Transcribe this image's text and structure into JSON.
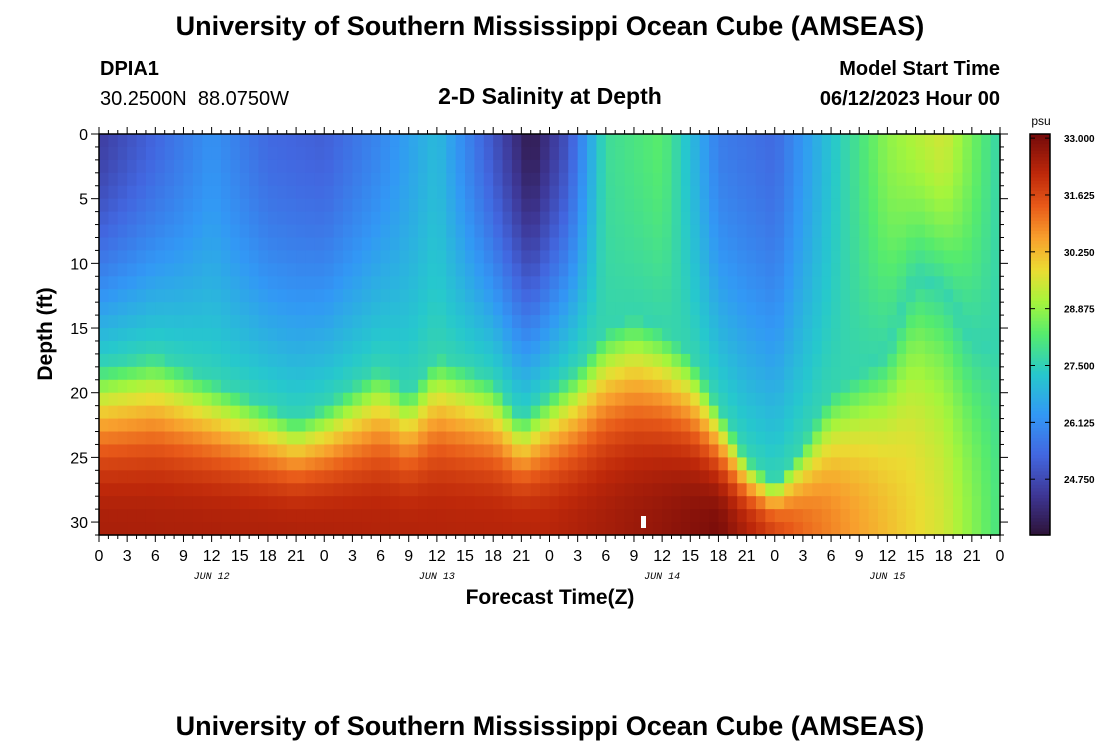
{
  "header": {
    "title": "University of Southern Mississippi Ocean Cube (AMSEAS)",
    "station_id": "DPIA1",
    "coords": "30.2500N  88.0750W",
    "subtitle": "2-D Salinity at Depth",
    "model_label": "Model Start Time",
    "model_time": "06/12/2023 Hour 00"
  },
  "footer": {
    "title": "University of Southern Mississippi Ocean Cube (AMSEAS)"
  },
  "chart_data": {
    "type": "heatmap",
    "title": "2-D Salinity at Depth",
    "xlabel": "Forecast Time(Z)",
    "ylabel": "Depth (ft)",
    "x_range_hours": [
      0,
      96
    ],
    "x_ticks": [
      "0",
      "3",
      "6",
      "9",
      "12",
      "15",
      "18",
      "21",
      "0",
      "3",
      "6",
      "9",
      "12",
      "15",
      "18",
      "21",
      "0",
      "3",
      "6",
      "9",
      "12",
      "15",
      "18",
      "21",
      "0",
      "3",
      "6",
      "9",
      "12",
      "15",
      "18",
      "21",
      "0"
    ],
    "day_labels": [
      "JUN 12",
      "JUN 13",
      "JUN 14",
      "JUN 15"
    ],
    "y_ticks": [
      0,
      5,
      10,
      15,
      20,
      25,
      30
    ],
    "y_range_ft": [
      0,
      31
    ],
    "colorbar": {
      "unit": "psu",
      "ticks": [
        "33.000",
        "31.625",
        "30.250",
        "28.875",
        "27.500",
        "26.125",
        "24.750"
      ],
      "range": [
        23.4,
        33.1
      ]
    },
    "field": {
      "description": "approximate interface depth (ft) separating fresher surface water from saltier bottom water, per forecast hour",
      "halocline_depth_ft": [
        [
          0,
          18
        ],
        [
          6,
          17
        ],
        [
          12,
          19
        ],
        [
          18,
          21
        ],
        [
          21,
          22
        ],
        [
          24,
          21
        ],
        [
          30,
          18
        ],
        [
          33,
          20
        ],
        [
          36,
          17
        ],
        [
          42,
          19
        ],
        [
          45,
          22
        ],
        [
          48,
          20
        ],
        [
          51,
          18
        ],
        [
          54,
          15
        ],
        [
          57,
          14
        ],
        [
          60,
          15
        ],
        [
          63,
          17
        ],
        [
          66,
          21
        ],
        [
          69,
          25
        ],
        [
          72,
          27
        ],
        [
          75,
          24
        ],
        [
          78,
          20
        ],
        [
          84,
          17
        ],
        [
          87,
          11
        ],
        [
          90,
          12
        ],
        [
          93,
          16
        ],
        [
          96,
          17
        ]
      ],
      "surface_min_psu": [
        [
          0,
          24.5
        ],
        [
          12,
          26.2
        ],
        [
          18,
          25.4
        ],
        [
          24,
          25.2
        ],
        [
          30,
          26.0
        ],
        [
          36,
          27.0
        ],
        [
          42,
          25.0
        ],
        [
          46,
          23.6
        ],
        [
          50,
          25.0
        ],
        [
          54,
          27.8
        ],
        [
          60,
          28.3
        ],
        [
          66,
          25.8
        ],
        [
          72,
          25.4
        ],
        [
          78,
          27.2
        ],
        [
          84,
          28.8
        ],
        [
          90,
          29.5
        ],
        [
          96,
          27.6
        ]
      ],
      "bottom_max_psu": [
        [
          0,
          32.4
        ],
        [
          24,
          32.3
        ],
        [
          48,
          32.2
        ],
        [
          60,
          32.7
        ],
        [
          66,
          33.0
        ],
        [
          72,
          31.6
        ],
        [
          75,
          31.2
        ],
        [
          84,
          30.2
        ],
        [
          90,
          29.5
        ],
        [
          96,
          28.0
        ]
      ]
    }
  }
}
